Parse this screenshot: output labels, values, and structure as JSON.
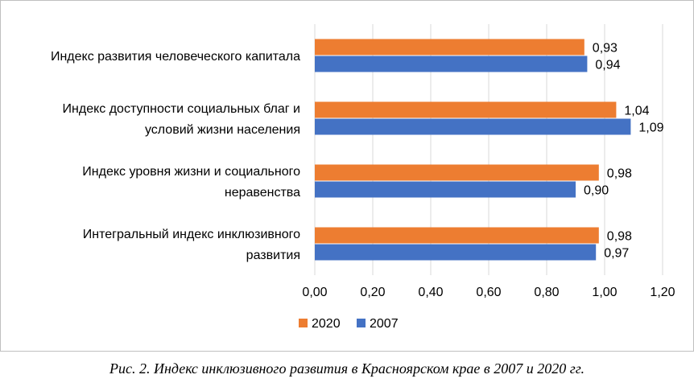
{
  "chart_data": {
    "type": "bar",
    "orientation": "horizontal",
    "categories": [
      [
        "Индекс развития человеческого капитала"
      ],
      [
        "Индекс доступности социальных благ и",
        "условий жизни населения"
      ],
      [
        "Индекс уровня жизни и социального",
        "неравенства"
      ],
      [
        "Интегральный индекс инклюзивного",
        "развития"
      ]
    ],
    "series": [
      {
        "name": "2020",
        "color": "#ED7D31",
        "values": [
          0.93,
          1.04,
          0.98,
          0.98
        ],
        "labels": [
          "0,93",
          "1,04",
          "0,98",
          "0,98"
        ]
      },
      {
        "name": "2007",
        "color": "#4472C4",
        "values": [
          0.94,
          1.09,
          0.9,
          0.97
        ],
        "labels": [
          "0,94",
          "1,09",
          "0,90",
          "0,97"
        ]
      }
    ],
    "xlim": [
      0,
      1.2
    ],
    "xticks": [
      0,
      0.2,
      0.4,
      0.6,
      0.8,
      1.0,
      1.2
    ],
    "xtick_labels": [
      "0,00",
      "0,20",
      "0,40",
      "0,60",
      "0,80",
      "1,00",
      "1,20"
    ],
    "grid": true,
    "legend_position": "bottom",
    "title": "",
    "xlabel": "",
    "ylabel": ""
  },
  "caption": "Рис. 2. Индекс инклюзивного развития в Красноярском крае в 2007 и 2020 гг."
}
